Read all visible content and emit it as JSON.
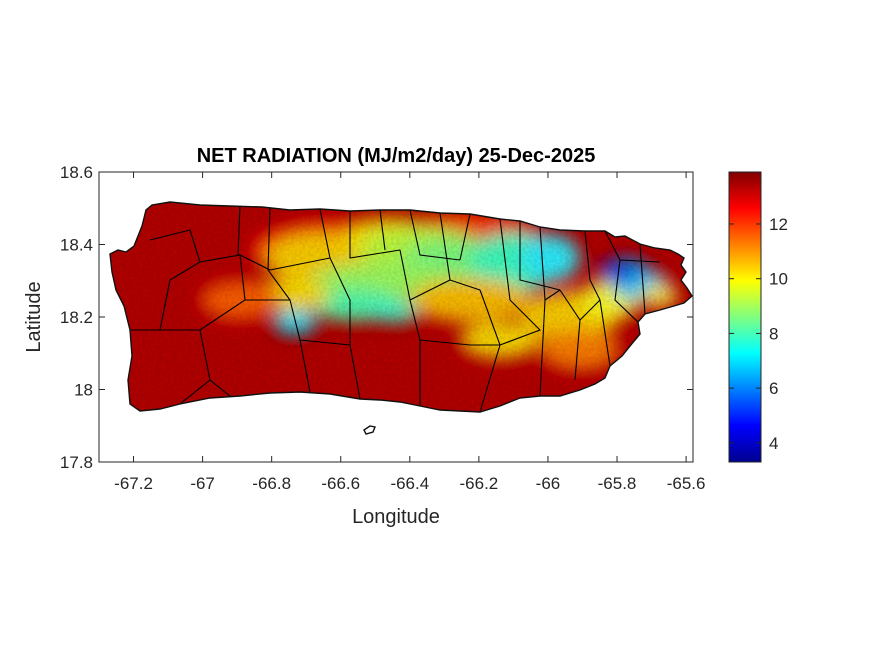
{
  "map": {
    "title": "NET RADIATION (MJ/m2/day) 25-Dec-2025",
    "xlabel": "Longitude",
    "ylabel": "Latitude",
    "xlim": [
      -67.3,
      -65.58
    ],
    "ylim": [
      17.8,
      18.6
    ],
    "xticks": [
      {
        "value": -67.2,
        "label": "-67.2"
      },
      {
        "value": -67.0,
        "label": "-67"
      },
      {
        "value": -66.8,
        "label": "-66.8"
      },
      {
        "value": -66.6,
        "label": "-66.6"
      },
      {
        "value": -66.4,
        "label": "-66.4"
      },
      {
        "value": -66.2,
        "label": "-66.2"
      },
      {
        "value": -66.0,
        "label": "-66"
      },
      {
        "value": -65.8,
        "label": "-65.8"
      },
      {
        "value": -65.6,
        "label": "-65.6"
      }
    ],
    "yticks": [
      {
        "value": 17.8,
        "label": "17.8"
      },
      {
        "value": 18.0,
        "label": "18"
      },
      {
        "value": 18.2,
        "label": "18.2"
      },
      {
        "value": 18.4,
        "label": "18.4"
      },
      {
        "value": 18.6,
        "label": "18.6"
      }
    ]
  },
  "colorbar": {
    "colormap": "jet",
    "clim": [
      3.3,
      13.9
    ],
    "ticks": [
      {
        "value": 4,
        "label": "4"
      },
      {
        "value": 6,
        "label": "6"
      },
      {
        "value": 8,
        "label": "8"
      },
      {
        "value": 10,
        "label": "10"
      },
      {
        "value": 12,
        "label": "12"
      }
    ]
  },
  "colors": {
    "low": "#00008f",
    "mid": "#80ff80",
    "high": "#800000",
    "boundary": "#000000"
  }
}
